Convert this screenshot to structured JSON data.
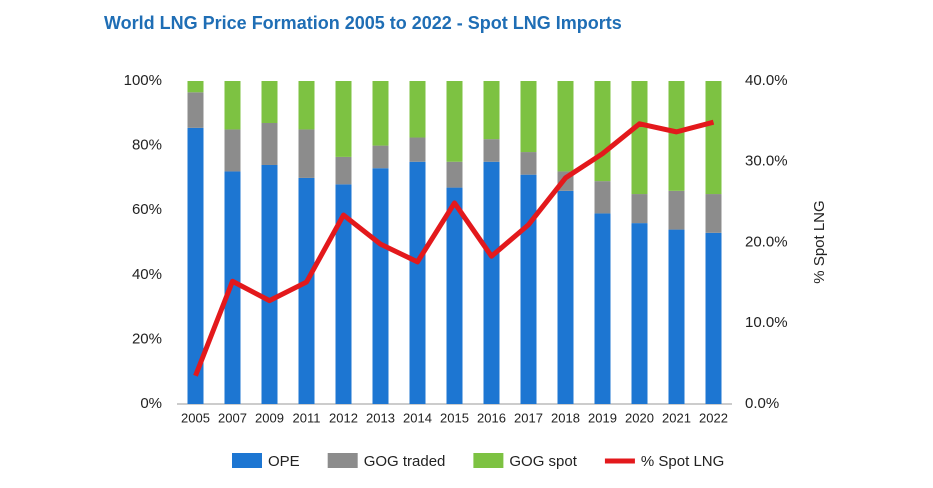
{
  "chart_data": {
    "type": "bar",
    "title": "World LNG Price Formation 2005 to 2022 - Spot LNG Imports",
    "categories": [
      "2005",
      "2007",
      "2009",
      "2011",
      "2012",
      "2013",
      "2014",
      "2015",
      "2016",
      "2017",
      "2018",
      "2019",
      "2020",
      "2021",
      "2022"
    ],
    "stacked": true,
    "series": [
      {
        "name": "OPE",
        "type": "bar",
        "color": "#1d76d2",
        "values": [
          85.5,
          72,
          74,
          70,
          68,
          73,
          75,
          67,
          75,
          71,
          66,
          59,
          56,
          54,
          53
        ]
      },
      {
        "name": "GOG traded",
        "type": "bar",
        "color": "#8c8c8c",
        "values": [
          11,
          13,
          13,
          15,
          8.5,
          7,
          7.5,
          8,
          7,
          7,
          6,
          10,
          9,
          12,
          12
        ]
      },
      {
        "name": "GOG spot",
        "type": "bar",
        "color": "#7dc242",
        "values": [
          3.5,
          15,
          13,
          15,
          23.5,
          20,
          17.5,
          25,
          18,
          22,
          28,
          31,
          35,
          34,
          35
        ]
      },
      {
        "name": "% Spot LNG",
        "type": "line",
        "axis": "y2",
        "color": "#e3191c",
        "values": [
          3.5,
          15.2,
          12.8,
          15.1,
          23.4,
          19.8,
          17.6,
          24.9,
          18.3,
          22.2,
          28,
          31,
          34.7,
          33.7,
          34.9
        ]
      }
    ],
    "ylim": [
      0,
      100
    ],
    "yticks": [
      {
        "value": 0,
        "label": "0%"
      },
      {
        "value": 20,
        "label": "20%"
      },
      {
        "value": 40,
        "label": "40%"
      },
      {
        "value": 60,
        "label": "60%"
      },
      {
        "value": 80,
        "label": "80%"
      },
      {
        "value": 100,
        "label": "100%"
      }
    ],
    "y2lim": [
      0,
      40
    ],
    "y2ticks": [
      {
        "value": 0,
        "label": "0.0%"
      },
      {
        "value": 10,
        "label": "10.0%"
      },
      {
        "value": 20,
        "label": "20.0%"
      },
      {
        "value": 30,
        "label": "30.0%"
      },
      {
        "value": 40,
        "label": "40.0%"
      }
    ],
    "y2label": "% Spot LNG"
  }
}
